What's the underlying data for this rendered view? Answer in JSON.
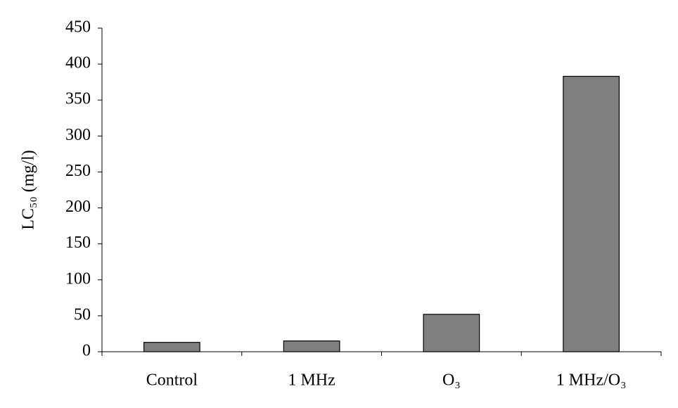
{
  "chart_data": {
    "type": "bar",
    "y_label": "LC₅₀ (mg/l)",
    "categories": [
      "Control",
      "1 MHz",
      "O₃",
      "1 MHz/O₃"
    ],
    "values": [
      13,
      15,
      52,
      383
    ],
    "color": "#808080",
    "ylim": [
      0,
      450
    ],
    "yticks": [
      0,
      50,
      100,
      150,
      200,
      250,
      300,
      350,
      400,
      450
    ],
    "grid": false
  }
}
